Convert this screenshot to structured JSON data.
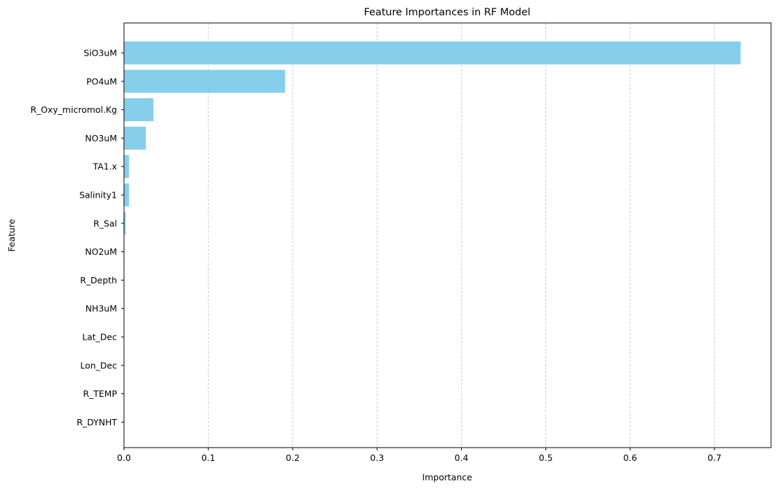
{
  "chart_data": {
    "type": "bar",
    "orientation": "horizontal",
    "title": "Feature Importances in RF Model",
    "xlabel": "Importance",
    "ylabel": "Feature",
    "categories": [
      "SiO3uM",
      "PO4uM",
      "R_Oxy_micromol.Kg",
      "NO3uM",
      "TA1.x",
      "Salinity1",
      "R_Sal",
      "NO2uM",
      "R_Depth",
      "NH3uM",
      "Lat_Dec",
      "Lon_Dec",
      "R_TEMP",
      "R_DYNHT"
    ],
    "values": [
      0.731,
      0.191,
      0.035,
      0.026,
      0.006,
      0.006,
      0.002,
      0.0005,
      0.0003,
      0.0002,
      0.0001,
      0.0001,
      0.0001,
      0.0001
    ],
    "xlim": [
      0,
      0.767
    ],
    "xticks": [
      0.0,
      0.1,
      0.2,
      0.3,
      0.4,
      0.5,
      0.6,
      0.7
    ],
    "xtick_labels": [
      "0.0",
      "0.1",
      "0.2",
      "0.3",
      "0.4",
      "0.5",
      "0.6",
      "0.7"
    ],
    "grid": "x-axis dashed",
    "bar_color": "#87ceeb"
  }
}
